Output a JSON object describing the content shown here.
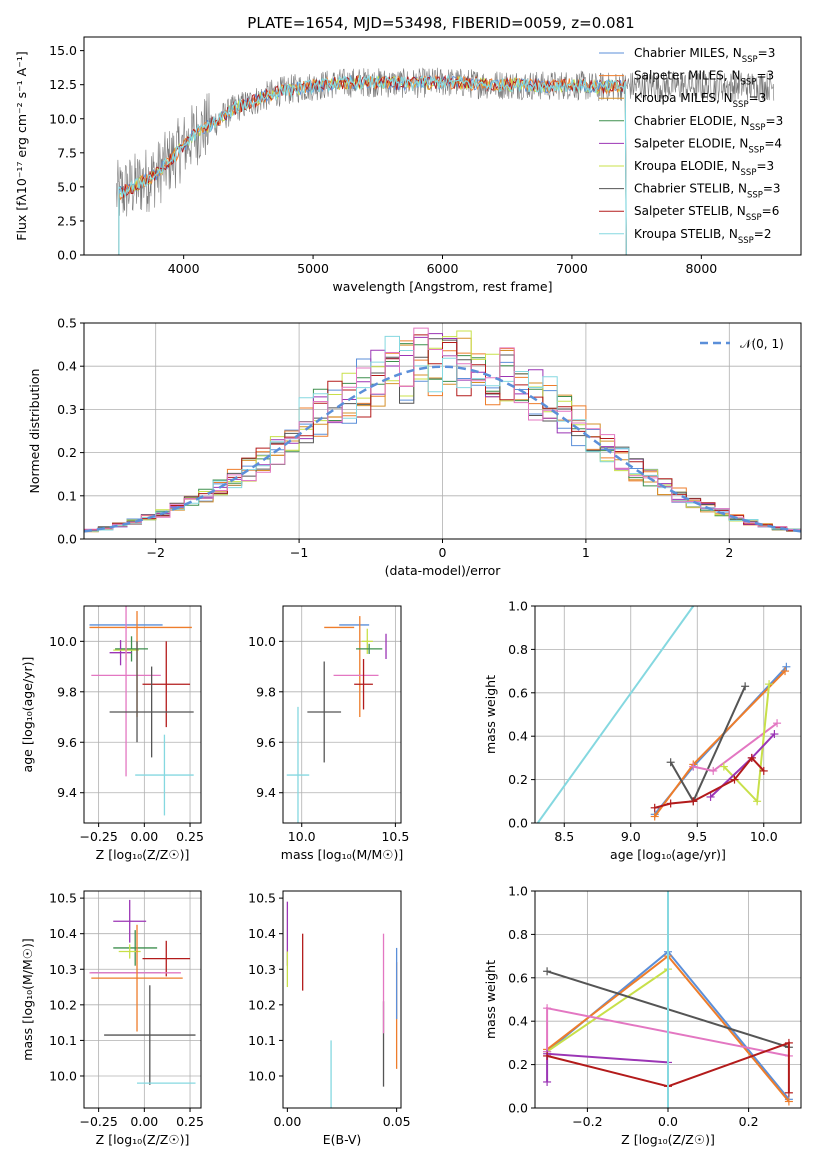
{
  "figure": {
    "title": "PLATE=1654, MJD=53498, FIBERID=0059, z=0.081"
  },
  "colors": {
    "Chabrier MILES": "#5b8fd9",
    "Salpeter MILES": "#ee7d2b",
    "Kroupa MILES": "#d5902a",
    "Chabrier ELODIE": "#3f8f4f",
    "Salpeter ELODIE": "#9b35b5",
    "Kroupa ELODIE": "#c8e04a",
    "Chabrier STELIB": "#555555",
    "Salpeter STELIB": "#b31b1b",
    "Kroupa STELIB": "#85d8e0",
    "data": "#777777",
    "norm": "#5b8fd9",
    "pink": "#e377c2"
  },
  "chart_data": [
    {
      "id": "spectrum",
      "type": "line",
      "title": "PLATE=1654, MJD=53498, FIBERID=0059, z=0.081",
      "xlabel": "wavelength [Angstrom, rest frame]",
      "ylabel": "Flux [fλ10⁻¹⁷ erg cm⁻² s⁻¹ A⁻¹]",
      "xlim": [
        3230,
        8770
      ],
      "ylim": [
        0,
        16
      ],
      "xticks": [
        4000,
        5000,
        6000,
        7000,
        8000
      ],
      "yticks": [
        0.0,
        2.5,
        5.0,
        7.5,
        10.0,
        12.5,
        15.0
      ],
      "legend_position": "right",
      "legend": [
        {
          "model": "Chabrier MILES",
          "n": 3
        },
        {
          "model": "Salpeter MILES",
          "n": 3
        },
        {
          "model": "Kroupa MILES",
          "n": 3
        },
        {
          "model": "Chabrier ELODIE",
          "n": 3
        },
        {
          "model": "Salpeter ELODIE",
          "n": 4
        },
        {
          "model": "Kroupa ELODIE",
          "n": 3
        },
        {
          "model": "Chabrier STELIB",
          "n": 3
        },
        {
          "model": "Salpeter STELIB",
          "n": 6
        },
        {
          "model": "Kroupa STELIB",
          "n": 2
        }
      ],
      "continuum": {
        "x": [
          3500,
          3650,
          3800,
          3950,
          4100,
          4250,
          4400,
          4550,
          4700,
          4850,
          5000,
          5200,
          5400,
          5600,
          5800,
          6000,
          6200,
          6400,
          6600,
          6800,
          7000,
          7200,
          7400
        ],
        "y": [
          4.5,
          5.2,
          6.0,
          7.5,
          9.0,
          9.8,
          10.8,
          11.3,
          11.9,
          12.2,
          12.4,
          12.6,
          12.7,
          12.6,
          12.6,
          12.7,
          12.6,
          12.5,
          12.5,
          12.4,
          12.5,
          12.3,
          12.4
        ]
      },
      "data_range": [
        3480,
        8560
      ],
      "model_range": [
        3500,
        7420
      ]
    },
    {
      "id": "residuals",
      "type": "histogram",
      "xlabel": "(data-model)/error",
      "ylabel": "Normed distribution",
      "xlim": [
        -2.5,
        2.5
      ],
      "ylim": [
        0,
        0.5
      ],
      "xticks": [
        -2,
        -1,
        0,
        1,
        2
      ],
      "yticks": [
        0.0,
        0.1,
        0.2,
        0.3,
        0.4,
        0.5
      ],
      "legend": [
        "𝒩(0, 1)"
      ],
      "legend_position": "top-right",
      "grid": true
    },
    {
      "id": "age-vs-z",
      "type": "errorbar",
      "xlabel": "Z [log₁₀(Z/Z☉)]",
      "ylabel": "age  [log₁₀(age/yr)]",
      "xlim": [
        -0.33,
        0.31
      ],
      "ylim": [
        9.28,
        10.14
      ],
      "xticks": [
        -0.25,
        0.0,
        0.25
      ],
      "ytick_labels": [
        "9.4",
        "9.6",
        "9.8",
        "10.0"
      ],
      "yticks": [
        9.4,
        9.6,
        9.8,
        10.0
      ],
      "points": [
        {
          "model": "Chabrier MILES",
          "x": -0.1,
          "xerr": 0.2,
          "y": 10.065,
          "yerr": 0.0
        },
        {
          "model": "Salpeter MILES",
          "x": -0.02,
          "xerr": 0.28,
          "y": 10.055,
          "yerr": 0.0
        },
        {
          "model": "Chabrier ELODIE",
          "x": -0.07,
          "xerr": 0.09,
          "y": 9.97,
          "yerr": 0.05
        },
        {
          "model": "Salpeter ELODIE",
          "x": -0.13,
          "xerr": 0.06,
          "y": 9.955,
          "yerr": 0.05
        },
        {
          "model": "Kroupa ELODIE",
          "x": -0.1,
          "xerr": 0.07,
          "y": 9.965,
          "yerr": 0.04
        },
        {
          "model": "pink",
          "x": -0.1,
          "xerr": 0.19,
          "y": 9.865,
          "yerr": 0.4
        },
        {
          "model": "Salpeter STELIB",
          "x": 0.12,
          "xerr": 0.13,
          "y": 9.83,
          "yerr": 0.17
        },
        {
          "model": "Salpeter MILES",
          "x": -0.04,
          "xerr": 0.0,
          "y": 9.91,
          "yerr": 0.21
        },
        {
          "model": "Chabrier STELIB",
          "x": 0.04,
          "xerr": 0.23,
          "y": 9.72,
          "yerr": 0.18
        },
        {
          "model": "Chabrier STELIB",
          "x": -0.04,
          "xerr": 0.0,
          "y": 9.8,
          "yerr": 0.2
        },
        {
          "model": "Kroupa STELIB",
          "x": 0.11,
          "xerr": 0.16,
          "y": 9.47,
          "yerr": 0.16
        }
      ]
    },
    {
      "id": "age-vs-mass",
      "type": "errorbar",
      "xlabel": "mass [log₁₀(M/M☉)]",
      "xlim": [
        9.9,
        10.53
      ],
      "ylim": [
        9.28,
        10.14
      ],
      "xticks": [
        10.0,
        10.5
      ],
      "yticks": [
        9.4,
        9.6,
        9.8,
        10.0
      ],
      "points": [
        {
          "model": "Chabrier MILES",
          "x": 10.28,
          "xerr": 0.08,
          "y": 10.065,
          "yerr": 0.0
        },
        {
          "model": "Salpeter MILES",
          "x": 10.2,
          "xerr": 0.08,
          "y": 10.055,
          "yerr": 0.0
        },
        {
          "model": "Salpeter MILES",
          "x": 10.31,
          "xerr": 0.0,
          "y": 9.9,
          "yerr": 0.2
        },
        {
          "model": "Kroupa ELODIE",
          "x": 10.35,
          "xerr": 0.03,
          "y": 10.0,
          "yerr": 0.05
        },
        {
          "model": "Salpeter ELODIE",
          "x": 10.45,
          "xerr": 0.0,
          "y": 9.98,
          "yerr": 0.05
        },
        {
          "model": "Chabrier ELODIE",
          "x": 10.36,
          "xerr": 0.07,
          "y": 9.97,
          "yerr": 0.02
        },
        {
          "model": "pink",
          "x": 10.29,
          "xerr": 0.12,
          "y": 9.865,
          "yerr": 0.0
        },
        {
          "model": "Salpeter STELIB",
          "x": 10.33,
          "xerr": 0.05,
          "y": 9.83,
          "yerr": 0.1
        },
        {
          "model": "Chabrier STELIB",
          "x": 10.12,
          "xerr": 0.09,
          "y": 9.72,
          "yerr": 0.2
        },
        {
          "model": "Kroupa STELIB",
          "x": 9.98,
          "xerr": 0.06,
          "y": 9.47,
          "yerr": 0.27
        }
      ]
    },
    {
      "id": "weight-vs-age",
      "type": "line",
      "xlabel": "age  [log₁₀(age/yr)]",
      "ylabel": "mass weight",
      "xlim": [
        8.28,
        10.28
      ],
      "ylim": [
        0,
        1
      ],
      "xticks": [
        8.5,
        9.0,
        9.5,
        10.0
      ],
      "yticks": [
        0.0,
        0.2,
        0.4,
        0.6,
        0.8,
        1.0
      ],
      "series": [
        {
          "model": "Kroupa STELIB",
          "x": [
            8.3,
            9.47
          ],
          "y": [
            0.0,
            1.0
          ]
        },
        {
          "model": "Chabrier MILES",
          "x": [
            9.18,
            9.47,
            10.17
          ],
          "y": [
            0.04,
            0.26,
            0.72
          ]
        },
        {
          "model": "Salpeter MILES",
          "x": [
            9.18,
            9.47,
            10.16
          ],
          "y": [
            0.03,
            0.27,
            0.7
          ]
        },
        {
          "model": "Chabrier STELIB",
          "x": [
            9.3,
            9.47,
            9.86
          ],
          "y": [
            0.28,
            0.1,
            0.63
          ]
        },
        {
          "model": "pink",
          "x": [
            9.47,
            9.62,
            10.1
          ],
          "y": [
            0.26,
            0.24,
            0.46
          ]
        },
        {
          "model": "Kroupa ELODIE",
          "x": [
            9.7,
            9.95,
            10.04
          ],
          "y": [
            0.26,
            0.1,
            0.64
          ]
        },
        {
          "model": "Salpeter ELODIE",
          "x": [
            9.6,
            9.91,
            10.08
          ],
          "y": [
            0.12,
            0.3,
            0.41
          ]
        },
        {
          "model": "Salpeter STELIB",
          "x": [
            9.18,
            9.3,
            9.47,
            9.78,
            9.91,
            10.0
          ],
          "y": [
            0.07,
            0.09,
            0.1,
            0.2,
            0.3,
            0.24
          ]
        }
      ]
    },
    {
      "id": "mass-vs-z",
      "type": "errorbar",
      "xlabel": "Z [log₁₀(Z/Z☉)]",
      "ylabel": "mass [log₁₀(M/M☉)]",
      "xlim": [
        -0.33,
        0.31
      ],
      "ylim": [
        9.91,
        10.52
      ],
      "xticks": [
        -0.25,
        0.0,
        0.25
      ],
      "yticks": [
        10.0,
        10.1,
        10.2,
        10.3,
        10.4,
        10.5
      ],
      "points": [
        {
          "model": "Salpeter ELODIE",
          "x": -0.08,
          "xerr": 0.09,
          "y": 10.435,
          "yerr": 0.06
        },
        {
          "model": "Chabrier ELODIE",
          "x": -0.05,
          "xerr": 0.12,
          "y": 10.36,
          "yerr": 0.05
        },
        {
          "model": "Kroupa ELODIE",
          "x": -0.08,
          "xerr": 0.06,
          "y": 10.35,
          "yerr": 0.02
        },
        {
          "model": "Salpeter STELIB",
          "x": 0.12,
          "xerr": 0.13,
          "y": 10.33,
          "yerr": 0.05
        },
        {
          "model": "Chabrier MILES",
          "x": -0.1,
          "xerr": 0.19,
          "y": 10.29,
          "yerr": 0.0
        },
        {
          "model": "pink",
          "x": -0.05,
          "xerr": 0.25,
          "y": 10.29,
          "yerr": 0.0
        },
        {
          "model": "Salpeter MILES",
          "x": -0.04,
          "xerr": 0.25,
          "y": 10.275,
          "yerr": 0.15
        },
        {
          "model": "Chabrier STELIB",
          "x": 0.03,
          "xerr": 0.25,
          "y": 10.115,
          "yerr": 0.14
        },
        {
          "model": "Kroupa STELIB",
          "x": 0.12,
          "xerr": 0.16,
          "y": 9.98,
          "yerr": 0.0
        }
      ]
    },
    {
      "id": "mass-vs-ebv",
      "type": "errorbar",
      "xlabel": "E(B-V)",
      "xlim": [
        -0.002,
        0.052
      ],
      "ylim": [
        9.91,
        10.52
      ],
      "xticks": [
        0.0,
        0.05
      ],
      "xtick_labels": [
        "0.00",
        "0.05"
      ],
      "yticks": [
        10.0,
        10.1,
        10.2,
        10.3,
        10.4,
        10.5
      ],
      "points": [
        {
          "model": "Salpeter ELODIE",
          "x": 0.0,
          "y": 10.4,
          "yerr": 0.09
        },
        {
          "model": "Kroupa ELODIE",
          "x": 0.0,
          "y": 10.3,
          "yerr": 0.05
        },
        {
          "model": "Salpeter STELIB",
          "x": 0.007,
          "y": 10.32,
          "yerr": 0.08
        },
        {
          "model": "Kroupa STELIB",
          "x": 0.02,
          "y": 10.0,
          "yerr": 0.1
        },
        {
          "model": "Chabrier STELIB",
          "x": 0.044,
          "y": 10.09,
          "yerr": 0.12
        },
        {
          "model": "pink",
          "x": 0.044,
          "y": 10.26,
          "yerr": 0.14
        },
        {
          "model": "Salpeter MILES",
          "x": 0.05,
          "y": 10.17,
          "yerr": 0.15
        },
        {
          "model": "Chabrier MILES",
          "x": 0.05,
          "y": 10.26,
          "yerr": 0.1
        }
      ]
    },
    {
      "id": "weight-vs-z",
      "type": "line",
      "xlabel": "Z [log₁₀(Z/Z☉)]",
      "ylabel": "mass weight",
      "xlim": [
        -0.33,
        0.33
      ],
      "ylim": [
        0,
        1
      ],
      "xticks": [
        -0.2,
        0.0,
        0.2
      ],
      "yticks": [
        0.0,
        0.2,
        0.4,
        0.6,
        0.8,
        1.0
      ],
      "series": [
        {
          "model": "Chabrier MILES",
          "x": [
            -0.3,
            0.0,
            0.3
          ],
          "y": [
            0.26,
            0.72,
            0.04
          ]
        },
        {
          "model": "Salpeter MILES",
          "x": [
            -0.3,
            0.0,
            0.3
          ],
          "y": [
            0.27,
            0.7,
            0.03
          ]
        },
        {
          "model": "Kroupa ELODIE",
          "x": [
            -0.3,
            0.0
          ],
          "y": [
            0.26,
            0.64
          ]
        },
        {
          "model": "Chabrier STELIB",
          "x": [
            -0.3,
            0.3
          ],
          "y": [
            0.63,
            0.28
          ]
        },
        {
          "model": "pink",
          "x": [
            -0.3,
            -0.3,
            0.3
          ],
          "y": [
            0.26,
            0.46,
            0.24
          ]
        },
        {
          "model": "Salpeter ELODIE",
          "x": [
            -0.3,
            -0.3,
            0.0
          ],
          "y": [
            0.12,
            0.25,
            0.21
          ]
        },
        {
          "model": "Salpeter STELIB",
          "x": [
            -0.3,
            0.0,
            0.3,
            0.3
          ],
          "y": [
            0.24,
            0.1,
            0.3,
            0.07
          ]
        },
        {
          "model": "Kroupa STELIB",
          "x": [
            0.0,
            0.0
          ],
          "y": [
            0.0,
            1.0
          ]
        }
      ]
    }
  ]
}
